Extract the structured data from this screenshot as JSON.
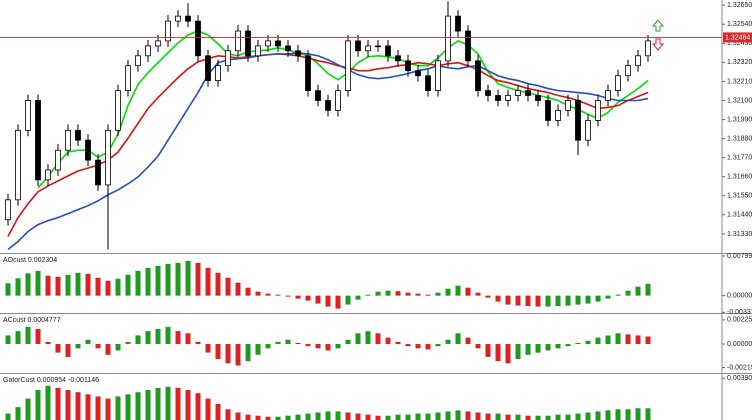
{
  "chart_data": [
    {
      "type": "candlestick",
      "ylim": [
        1.3122,
        1.3268
      ],
      "yticks": [
        {
          "value": 1.3265,
          "label": "1.32650"
        },
        {
          "value": 1.3254,
          "label": "1.32540"
        },
        {
          "value": 1.3243,
          "label": "1.32430"
        },
        {
          "value": 1.3232,
          "label": "1.32320"
        },
        {
          "value": 1.3221,
          "label": "1.32210"
        },
        {
          "value": 1.321,
          "label": "1.32100"
        },
        {
          "value": 1.3199,
          "label": "1.31990"
        },
        {
          "value": 1.3188,
          "label": "1.31880"
        },
        {
          "value": 1.3177,
          "label": "1.31770"
        },
        {
          "value": 1.3166,
          "label": "1.31660"
        },
        {
          "value": 1.3155,
          "label": "1.31550"
        },
        {
          "value": 1.3144,
          "label": "1.31440"
        },
        {
          "value": 1.3133,
          "label": "1.31330"
        }
      ],
      "up_color": "#ffffff",
      "down_color": "#000000",
      "current_price": {
        "value": 1.32464,
        "label": "1.32464"
      },
      "current_price_color": "#d42a2a",
      "open": [
        1.31412,
        1.31527,
        1.31928,
        1.321,
        1.31642,
        1.31699,
        1.31813,
        1.31928,
        1.31871,
        1.31756,
        1.31613,
        1.31928,
        1.32157,
        1.32301,
        1.32358,
        1.32415,
        1.32444,
        1.32558,
        1.32587,
        1.32558,
        1.32358,
        1.32215,
        1.32301,
        1.32387,
        1.32501,
        1.32358,
        1.32415,
        1.32444,
        1.32415,
        1.32387,
        1.32358,
        1.32157,
        1.321,
        1.32043,
        1.32157,
        1.32444,
        1.32387,
        1.32415,
        1.32415,
        1.32358,
        1.32329,
        1.32272,
        1.32243,
        1.32157,
        1.32329,
        1.32587,
        1.32501,
        1.32329,
        1.32157,
        1.32129,
        1.321,
        1.32129,
        1.32157,
        1.32129,
        1.321,
        1.31985,
        1.32043,
        1.321,
        1.31871,
        1.31985,
        1.321,
        1.32157,
        1.32243,
        1.32301,
        1.32358
      ],
      "high": [
        1.31561,
        1.31962,
        1.32134,
        1.32134,
        1.31733,
        1.31848,
        1.31962,
        1.31962,
        1.31905,
        1.31791,
        1.31962,
        1.32192,
        1.32335,
        1.32392,
        1.3245,
        1.32478,
        1.32593,
        1.32621,
        1.32662,
        1.32593,
        1.32392,
        1.32335,
        1.32421,
        1.32535,
        1.32535,
        1.3245,
        1.32478,
        1.32478,
        1.3245,
        1.32421,
        1.32392,
        1.32192,
        1.32134,
        1.32192,
        1.32478,
        1.32478,
        1.3245,
        1.3245,
        1.3245,
        1.32392,
        1.32364,
        1.32306,
        1.32278,
        1.32364,
        1.32673,
        1.32621,
        1.32535,
        1.32364,
        1.32192,
        1.32163,
        1.32163,
        1.32192,
        1.32192,
        1.32163,
        1.32134,
        1.32077,
        1.32134,
        1.32134,
        1.3202,
        1.32134,
        1.32192,
        1.32278,
        1.32335,
        1.32392,
        1.32478
      ],
      "low": [
        1.31378,
        1.31493,
        1.31894,
        1.31607,
        1.31607,
        1.31665,
        1.31779,
        1.31837,
        1.31722,
        1.31579,
        1.3124,
        1.31894,
        1.32123,
        1.32266,
        1.32323,
        1.32381,
        1.32409,
        1.32524,
        1.32524,
        1.32323,
        1.3218,
        1.3218,
        1.32266,
        1.32352,
        1.32323,
        1.32323,
        1.32381,
        1.32381,
        1.32352,
        1.32323,
        1.32123,
        1.32066,
        1.32008,
        1.32008,
        1.32123,
        1.32352,
        1.32352,
        1.32381,
        1.32323,
        1.32295,
        1.32238,
        1.32209,
        1.32123,
        1.32123,
        1.32295,
        1.32467,
        1.32295,
        1.32123,
        1.32094,
        1.32066,
        1.32066,
        1.32094,
        1.32094,
        1.32066,
        1.31951,
        1.31951,
        1.32008,
        1.31785,
        1.31837,
        1.31951,
        1.32066,
        1.32123,
        1.32209,
        1.32266,
        1.32323
      ],
      "close": [
        1.31527,
        1.31928,
        1.321,
        1.31642,
        1.31699,
        1.31813,
        1.31928,
        1.31871,
        1.31756,
        1.31613,
        1.31928,
        1.32157,
        1.32301,
        1.32358,
        1.32415,
        1.32444,
        1.32558,
        1.32587,
        1.32558,
        1.32358,
        1.32215,
        1.32301,
        1.32387,
        1.32501,
        1.32358,
        1.32415,
        1.32444,
        1.32415,
        1.32387,
        1.32358,
        1.32157,
        1.321,
        1.32043,
        1.32157,
        1.32444,
        1.32387,
        1.32415,
        1.32415,
        1.32358,
        1.32329,
        1.32272,
        1.32243,
        1.32157,
        1.32329,
        1.32587,
        1.32501,
        1.32329,
        1.32157,
        1.32129,
        1.321,
        1.32129,
        1.32157,
        1.32129,
        1.321,
        1.31985,
        1.32043,
        1.321,
        1.31871,
        1.31985,
        1.321,
        1.32157,
        1.32243,
        1.32301,
        1.32358,
        1.32444
      ],
      "lines": [
        {
          "color": "#00dd00",
          "values": [
            null,
            null,
            null,
            1.31596,
            1.31659,
            1.31739,
            1.31802,
            1.31813,
            1.31813,
            1.31773,
            1.31802,
            1.31905,
            1.32071,
            1.32192,
            1.3226,
            1.32318,
            1.32375,
            1.32432,
            1.32478,
            1.32501,
            1.32478,
            1.32427,
            1.32369,
            1.32358,
            1.32381,
            1.32387,
            1.32392,
            1.32404,
            1.32392,
            1.32375,
            1.32358,
            1.32312,
            1.32255,
            1.3222,
            1.3226,
            1.32318,
            1.32352,
            1.32358,
            1.32352,
            1.32341,
            1.32318,
            1.32301,
            1.32301,
            1.32346,
            1.32404,
            1.32444,
            1.32421,
            1.32369,
            1.32266,
            1.32197,
            1.32175,
            1.32157,
            1.32146,
            1.32129,
            1.32117,
            1.321,
            1.32071,
            1.32048,
            1.3202,
            1.31997,
            1.32031,
            1.32089,
            1.32129,
            1.32169,
            1.32215
          ]
        },
        {
          "color": "#e01010",
          "values": [
            1.31315,
            1.31424,
            1.31504,
            1.31573,
            1.31607,
            1.31636,
            1.31665,
            1.31693,
            1.3171,
            1.31728,
            1.31756,
            1.31802,
            1.31882,
            1.31968,
            1.32054,
            1.32117,
            1.32175,
            1.32232,
            1.32283,
            1.32323,
            1.32341,
            1.32358,
            1.32352,
            1.32346,
            1.32352,
            1.32358,
            1.32364,
            1.32369,
            1.32364,
            1.32358,
            1.32346,
            1.32329,
            1.32318,
            1.32301,
            1.32289,
            1.32272,
            1.32272,
            1.32283,
            1.32289,
            1.32301,
            1.32306,
            1.32318,
            1.32312,
            1.32301,
            1.32312,
            1.32318,
            1.32301,
            1.32278,
            1.32243,
            1.32215,
            1.32203,
            1.32186,
            1.32169,
            1.32157,
            1.32146,
            1.32129,
            1.32117,
            1.321,
            1.32077,
            1.32054,
            1.3206,
            1.32071,
            1.321,
            1.32123,
            1.32146
          ]
        },
        {
          "color": "#1f4fbf",
          "values": [
            1.3124,
            1.31286,
            1.31344,
            1.31384,
            1.31407,
            1.31424,
            1.31447,
            1.3147,
            1.31493,
            1.31521,
            1.31556,
            1.31584,
            1.31619,
            1.31659,
            1.31716,
            1.31779,
            1.31871,
            1.31962,
            1.32054,
            1.32146,
            1.32249,
            1.32318,
            1.32335,
            1.32341,
            1.32346,
            1.32358,
            1.32364,
            1.32369,
            1.32369,
            1.32375,
            1.32369,
            1.32358,
            1.32335,
            1.32306,
            1.32278,
            1.32249,
            1.32232,
            1.32226,
            1.32232,
            1.32243,
            1.32255,
            1.32272,
            1.32283,
            1.32301,
            1.32289,
            1.32283,
            1.32295,
            1.32301,
            1.32272,
            1.32243,
            1.32226,
            1.32215,
            1.32197,
            1.32186,
            1.32169,
            1.32157,
            1.32152,
            1.32146,
            1.3214,
            1.32129,
            1.32112,
            1.321,
            1.321,
            1.321,
            1.32112
          ]
        }
      ]
    },
    {
      "type": "histogram",
      "title": "AOcust 0.002304",
      "ylim": [
        -0.0035,
        0.0084
      ],
      "yticks": [
        0.007998,
        {
          "value": 0,
          "label": "0.000000"
        },
        -0.003373
      ],
      "up_color": "#1e9a1e",
      "down_color": "#e02020",
      "values": [
        0.0025,
        0.0035,
        0.0045,
        0.005,
        0.004,
        0.0038,
        0.0042,
        0.0046,
        0.0044,
        0.0036,
        0.003,
        0.0034,
        0.0042,
        0.005,
        0.0056,
        0.006,
        0.0064,
        0.0066,
        0.007,
        0.0066,
        0.0056,
        0.0046,
        0.0036,
        0.0026,
        0.0016,
        0.0008,
        0.0004,
        0.0002,
        -0.0002,
        -0.0006,
        -0.001,
        -0.0016,
        -0.0022,
        -0.0026,
        -0.0018,
        -0.0008,
        0.0002,
        0.0008,
        0.001,
        0.0009,
        0.0006,
        0.0004,
        0.0002,
        0.0006,
        0.0014,
        0.002,
        0.0016,
        0.0006,
        -0.0004,
        -0.0012,
        -0.0018,
        -0.002,
        -0.0021,
        -0.0022,
        -0.0022,
        -0.0021,
        -0.002,
        -0.0018,
        -0.0016,
        -0.0012,
        -0.0006,
        0.0002,
        0.001,
        0.0018,
        0.0024
      ]
    },
    {
      "type": "histogram",
      "title": "ACcust 0.0004777",
      "ylim": [
        -0.0027,
        0.0028
      ],
      "yticks": [
        0.0022509,
        {
          "value": 0,
          "label": "0.0000000"
        },
        -0.0021956
      ],
      "up_color": "#1e9a1e",
      "down_color": "#e02020",
      "values": [
        0.0008,
        0.0012,
        0.0016,
        0.0014,
        0.0002,
        -0.0008,
        -0.0012,
        -0.0004,
        0.0004,
        -0.0004,
        -0.001,
        -0.0006,
        0.0002,
        0.0008,
        0.0012,
        0.0014,
        0.0016,
        0.0012,
        0.001,
        0.0002,
        -0.0008,
        -0.0014,
        -0.0018,
        -0.002,
        -0.0016,
        -0.001,
        -0.0004,
        0.0002,
        0.0004,
        0.0001,
        -0.0002,
        -0.0004,
        -0.0006,
        -0.0004,
        0.0004,
        0.001,
        0.0012,
        0.001,
        0.0006,
        0.0002,
        -0.0002,
        -0.0004,
        -0.0005,
        -0.0002,
        0.0004,
        0.001,
        0.0006,
        -0.0004,
        -0.0012,
        -0.0016,
        -0.0018,
        -0.0014,
        -0.001,
        -0.0008,
        -0.0006,
        -0.0004,
        -0.0002,
        0.0001,
        0.0003,
        0.0006,
        0.0008,
        0.001,
        0.0009,
        0.0008,
        0.0007
      ]
    },
    {
      "type": "histogram",
      "title": "GatorCust 0.000954 -0.001146",
      "ylim": [
        0,
        0.0043
      ],
      "yticks": [
        0.003906
      ],
      "up_color": "#1e9a1e",
      "down_color": "#e02020",
      "values": [
        0.0006,
        0.0012,
        0.002,
        0.0028,
        0.0032,
        0.003,
        0.0028,
        0.0026,
        0.0024,
        0.0022,
        0.002,
        0.0022,
        0.0024,
        0.0026,
        0.0028,
        0.003,
        0.0031,
        0.003,
        0.0028,
        0.0025,
        0.002,
        0.0015,
        0.001,
        0.0007,
        0.0005,
        0.0004,
        0.0003,
        0.0003,
        0.0004,
        0.0005,
        0.0006,
        0.0007,
        0.0008,
        0.0008,
        0.0007,
        0.0006,
        0.0005,
        0.0004,
        0.0004,
        0.0005,
        0.0005,
        0.0006,
        0.0006,
        0.0007,
        0.0008,
        0.0009,
        0.0008,
        0.0007,
        0.0006,
        0.0006,
        0.0005,
        0.0005,
        0.0004,
        0.0004,
        0.0004,
        0.0005,
        0.0005,
        0.0006,
        0.0007,
        0.0008,
        0.0009,
        0.001,
        0.001,
        0.0011,
        0.0011
      ]
    }
  ]
}
